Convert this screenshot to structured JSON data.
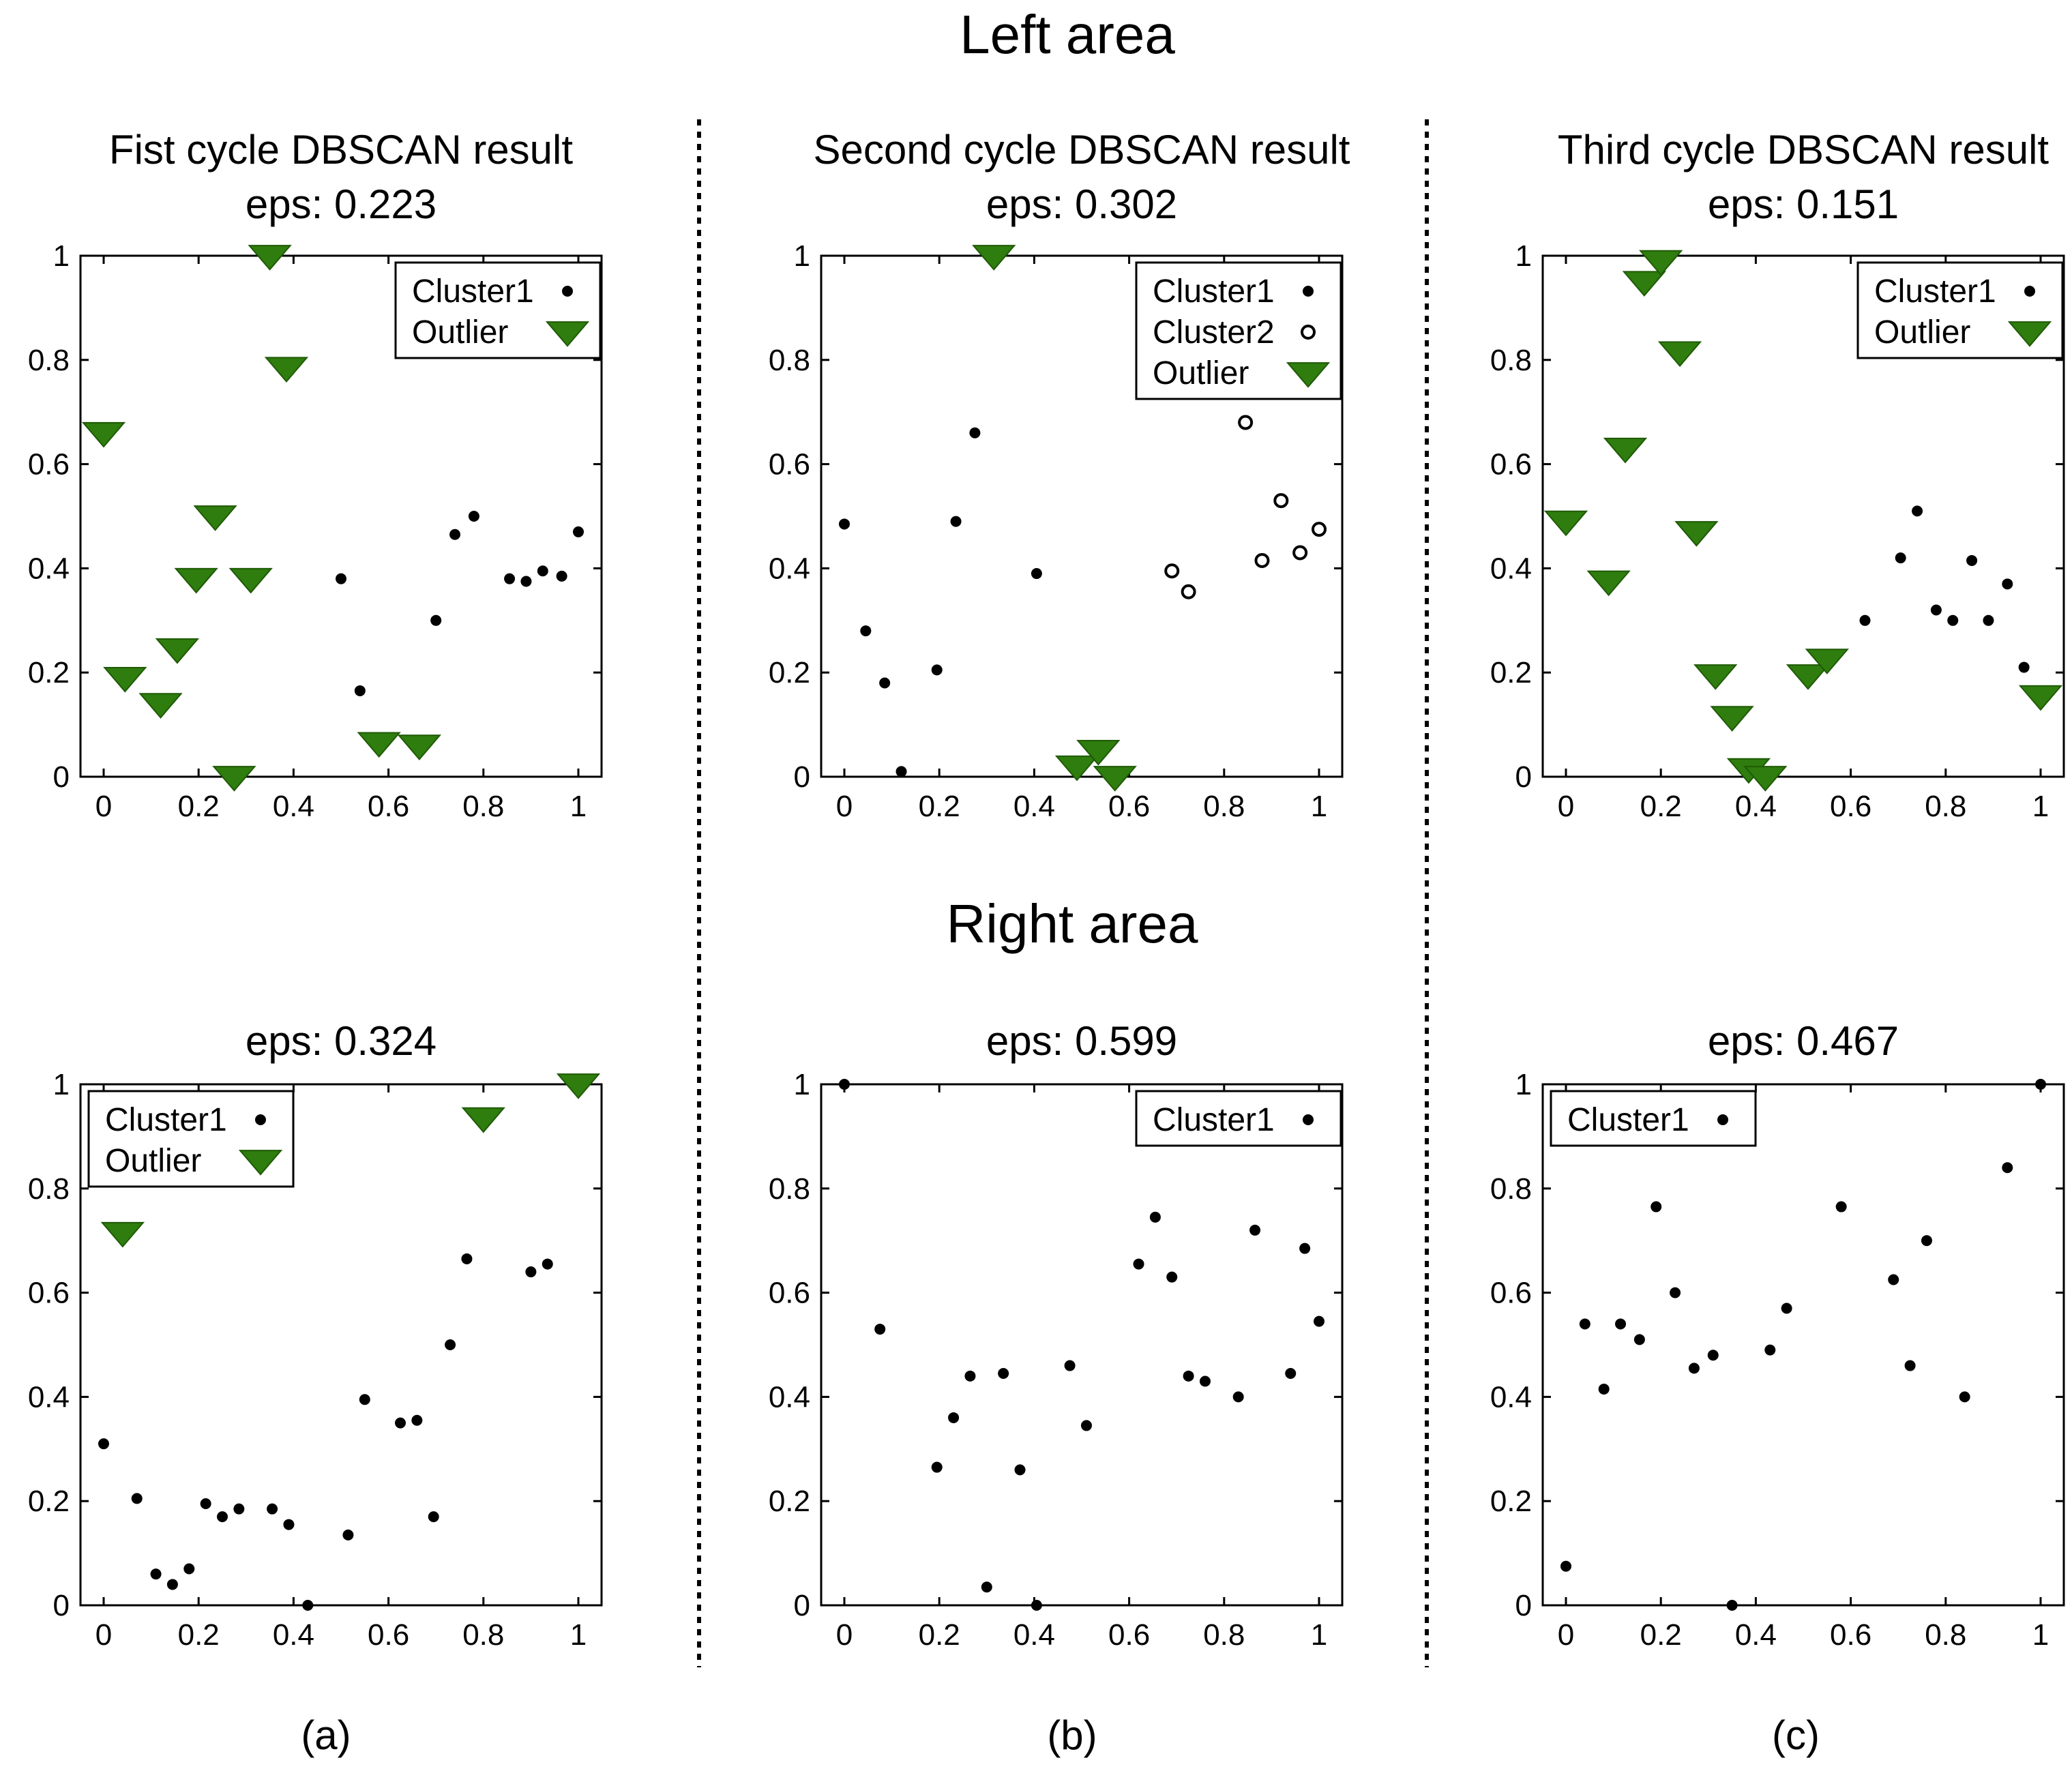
{
  "figure": {
    "top_heading": "Left area",
    "middle_heading": "Right area",
    "subfigure_labels": [
      "(a)",
      "(b)",
      "(c)"
    ]
  },
  "colors": {
    "outlier": "#2e7d0e",
    "point": "#000000",
    "axes": "#000000"
  },
  "chart_data": [
    {
      "type": "scatter",
      "area": "Left area",
      "column": 0,
      "row": 0,
      "title": [
        "Fist cycle DBSCAN result",
        "eps: 0.223"
      ],
      "xlim": [
        0,
        1
      ],
      "ylim": [
        0,
        1
      ],
      "xticks": [
        "0",
        "0.2",
        "0.4",
        "0.6",
        "0.8",
        "1"
      ],
      "yticks": [
        "0",
        "0.2",
        "0.4",
        "0.6",
        "0.8",
        "1"
      ],
      "legend": "top-right",
      "series": [
        {
          "name": "Cluster1",
          "marker": "dot",
          "points": [
            [
              0.5,
              0.38
            ],
            [
              0.54,
              0.165
            ],
            [
              0.7,
              0.3
            ],
            [
              0.74,
              0.465
            ],
            [
              0.78,
              0.5
            ],
            [
              0.855,
              0.38
            ],
            [
              0.89,
              0.375
            ],
            [
              0.925,
              0.395
            ],
            [
              0.965,
              0.385
            ],
            [
              1.0,
              0.47
            ]
          ]
        },
        {
          "name": "Outlier",
          "marker": "triangle",
          "points": [
            [
              0.0,
              0.66
            ],
            [
              0.045,
              0.19
            ],
            [
              0.12,
              0.14
            ],
            [
              0.155,
              0.245
            ],
            [
              0.195,
              0.38
            ],
            [
              0.235,
              0.5
            ],
            [
              0.275,
              0.0
            ],
            [
              0.31,
              0.38
            ],
            [
              0.35,
              1.0
            ],
            [
              0.385,
              0.785
            ],
            [
              0.58,
              0.065
            ],
            [
              0.665,
              0.06
            ]
          ]
        }
      ]
    },
    {
      "type": "scatter",
      "area": "Left area",
      "column": 1,
      "row": 0,
      "title": [
        "Second cycle DBSCAN result",
        "eps: 0.302"
      ],
      "xlim": [
        0,
        1
      ],
      "ylim": [
        0,
        1
      ],
      "xticks": [
        "0",
        "0.2",
        "0.4",
        "0.6",
        "0.8",
        "1"
      ],
      "yticks": [
        "0",
        "0.2",
        "0.4",
        "0.6",
        "0.8",
        "1"
      ],
      "legend": "top-right",
      "series": [
        {
          "name": "Cluster1",
          "marker": "dot",
          "points": [
            [
              0.0,
              0.485
            ],
            [
              0.045,
              0.28
            ],
            [
              0.085,
              0.18
            ],
            [
              0.12,
              0.01
            ],
            [
              0.195,
              0.205
            ],
            [
              0.235,
              0.49
            ],
            [
              0.275,
              0.66
            ],
            [
              0.405,
              0.39
            ]
          ]
        },
        {
          "name": "Cluster2",
          "marker": "circle",
          "points": [
            [
              0.69,
              0.395
            ],
            [
              0.725,
              0.355
            ],
            [
              0.845,
              0.68
            ],
            [
              0.88,
              0.415
            ],
            [
              0.92,
              0.53
            ],
            [
              0.96,
              0.43
            ],
            [
              1.0,
              0.475
            ]
          ]
        },
        {
          "name": "Outlier",
          "marker": "triangle",
          "points": [
            [
              0.315,
              1.0
            ],
            [
              0.49,
              0.02
            ],
            [
              0.535,
              0.05
            ],
            [
              0.57,
              0.0
            ]
          ]
        }
      ]
    },
    {
      "type": "scatter",
      "area": "Left area",
      "column": 2,
      "row": 0,
      "title": [
        "Third cycle DBSCAN result",
        "eps: 0.151"
      ],
      "xlim": [
        0,
        1
      ],
      "ylim": [
        0,
        1
      ],
      "xticks": [
        "0",
        "0.2",
        "0.4",
        "0.6",
        "0.8",
        "1"
      ],
      "yticks": [
        "0",
        "0.2",
        "0.4",
        "0.6",
        "0.8",
        "1"
      ],
      "legend": "top-right",
      "series": [
        {
          "name": "Cluster1",
          "marker": "dot",
          "points": [
            [
              0.63,
              0.3
            ],
            [
              0.705,
              0.42
            ],
            [
              0.74,
              0.51
            ],
            [
              0.78,
              0.32
            ],
            [
              0.815,
              0.3
            ],
            [
              0.855,
              0.415
            ],
            [
              0.89,
              0.3
            ],
            [
              0.93,
              0.37
            ],
            [
              0.965,
              0.21
            ]
          ]
        },
        {
          "name": "Outlier",
          "marker": "triangle",
          "points": [
            [
              0.0,
              0.49
            ],
            [
              0.09,
              0.375
            ],
            [
              0.125,
              0.63
            ],
            [
              0.165,
              0.95
            ],
            [
              0.2,
              0.99
            ],
            [
              0.24,
              0.815
            ],
            [
              0.275,
              0.47
            ],
            [
              0.315,
              0.195
            ],
            [
              0.35,
              0.115
            ],
            [
              0.385,
              0.015
            ],
            [
              0.42,
              0.0
            ],
            [
              0.51,
              0.195
            ],
            [
              0.55,
              0.225
            ],
            [
              1.0,
              0.155
            ]
          ]
        }
      ]
    },
    {
      "type": "scatter",
      "area": "Right area",
      "column": 0,
      "row": 1,
      "title": [
        "eps: 0.324"
      ],
      "xlim": [
        0,
        1
      ],
      "ylim": [
        0,
        1
      ],
      "xticks": [
        "0",
        "0.2",
        "0.4",
        "0.6",
        "0.8",
        "1"
      ],
      "yticks": [
        "0",
        "0.2",
        "0.4",
        "0.6",
        "0.8",
        "1"
      ],
      "legend": "top-left",
      "series": [
        {
          "name": "Cluster1",
          "marker": "dot",
          "points": [
            [
              0.0,
              0.31
            ],
            [
              0.07,
              0.205
            ],
            [
              0.11,
              0.06
            ],
            [
              0.145,
              0.04
            ],
            [
              0.18,
              0.07
            ],
            [
              0.215,
              0.195
            ],
            [
              0.25,
              0.17
            ],
            [
              0.285,
              0.185
            ],
            [
              0.355,
              0.185
            ],
            [
              0.39,
              0.155
            ],
            [
              0.43,
              0.0
            ],
            [
              0.515,
              0.135
            ],
            [
              0.55,
              0.395
            ],
            [
              0.625,
              0.35
            ],
            [
              0.66,
              0.355
            ],
            [
              0.695,
              0.17
            ],
            [
              0.73,
              0.5
            ],
            [
              0.765,
              0.665
            ],
            [
              0.9,
              0.64
            ],
            [
              0.935,
              0.655
            ]
          ]
        },
        {
          "name": "Outlier",
          "marker": "triangle",
          "points": [
            [
              0.04,
              0.715
            ],
            [
              0.8,
              0.935
            ],
            [
              1.0,
              1.0
            ]
          ]
        }
      ]
    },
    {
      "type": "scatter",
      "area": "Right area",
      "column": 1,
      "row": 1,
      "title": [
        "eps: 0.599"
      ],
      "xlim": [
        0,
        1
      ],
      "ylim": [
        0,
        1
      ],
      "xticks": [
        "0",
        "0.2",
        "0.4",
        "0.6",
        "0.8",
        "1"
      ],
      "yticks": [
        "0",
        "0.2",
        "0.4",
        "0.6",
        "0.8",
        "1"
      ],
      "legend": "top-right",
      "series": [
        {
          "name": "Cluster1",
          "marker": "dot",
          "points": [
            [
              0.0,
              1.0
            ],
            [
              0.075,
              0.53
            ],
            [
              0.195,
              0.265
            ],
            [
              0.23,
              0.36
            ],
            [
              0.265,
              0.44
            ],
            [
              0.3,
              0.035
            ],
            [
              0.335,
              0.445
            ],
            [
              0.37,
              0.26
            ],
            [
              0.405,
              0.0
            ],
            [
              0.475,
              0.46
            ],
            [
              0.51,
              0.345
            ],
            [
              0.62,
              0.655
            ],
            [
              0.655,
              0.745
            ],
            [
              0.69,
              0.63
            ],
            [
              0.725,
              0.44
            ],
            [
              0.76,
              0.43
            ],
            [
              0.83,
              0.4
            ],
            [
              0.865,
              0.72
            ],
            [
              0.94,
              0.445
            ],
            [
              0.97,
              0.685
            ],
            [
              1.0,
              0.545
            ]
          ]
        }
      ]
    },
    {
      "type": "scatter",
      "area": "Right area",
      "column": 2,
      "row": 1,
      "title": [
        "eps: 0.467"
      ],
      "xlim": [
        0,
        1
      ],
      "ylim": [
        0,
        1
      ],
      "xticks": [
        "0",
        "0.2",
        "0.4",
        "0.6",
        "0.8",
        "1"
      ],
      "yticks": [
        "0",
        "0.2",
        "0.4",
        "0.6",
        "0.8",
        "1"
      ],
      "legend": "top-left",
      "series": [
        {
          "name": "Cluster1",
          "marker": "dot",
          "points": [
            [
              0.0,
              0.075
            ],
            [
              0.04,
              0.54
            ],
            [
              0.08,
              0.415
            ],
            [
              0.115,
              0.54
            ],
            [
              0.155,
              0.51
            ],
            [
              0.19,
              0.765
            ],
            [
              0.23,
              0.6
            ],
            [
              0.27,
              0.455
            ],
            [
              0.31,
              0.48
            ],
            [
              0.35,
              0.0
            ],
            [
              0.43,
              0.49
            ],
            [
              0.465,
              0.57
            ],
            [
              0.58,
              0.765
            ],
            [
              0.69,
              0.625
            ],
            [
              0.725,
              0.46
            ],
            [
              0.76,
              0.7
            ],
            [
              0.84,
              0.4
            ],
            [
              0.93,
              0.84
            ],
            [
              1.0,
              1.0
            ]
          ]
        }
      ]
    }
  ]
}
